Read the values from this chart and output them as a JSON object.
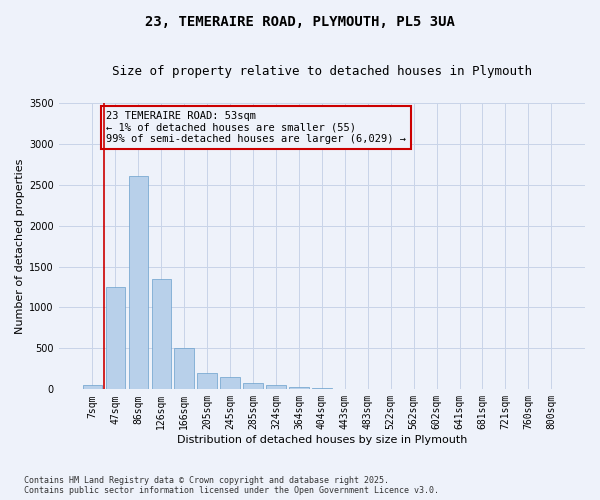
{
  "title_line1": "23, TEMERAIRE ROAD, PLYMOUTH, PL5 3UA",
  "title_line2": "Size of property relative to detached houses in Plymouth",
  "xlabel": "Distribution of detached houses by size in Plymouth",
  "ylabel": "Number of detached properties",
  "categories": [
    "7sqm",
    "47sqm",
    "86sqm",
    "126sqm",
    "166sqm",
    "205sqm",
    "245sqm",
    "285sqm",
    "324sqm",
    "364sqm",
    "404sqm",
    "443sqm",
    "483sqm",
    "522sqm",
    "562sqm",
    "602sqm",
    "641sqm",
    "681sqm",
    "721sqm",
    "760sqm",
    "800sqm"
  ],
  "values": [
    55,
    1250,
    2600,
    1350,
    500,
    200,
    150,
    75,
    50,
    25,
    15,
    8,
    5,
    3,
    2,
    1,
    1,
    0,
    0,
    0,
    0
  ],
  "bar_color": "#b8d0ea",
  "bar_edgecolor": "#6aa0cc",
  "vline_color": "#cc0000",
  "annotation_text": "23 TEMERAIRE ROAD: 53sqm\n← 1% of detached houses are smaller (55)\n99% of semi-detached houses are larger (6,029) →",
  "annotation_box_color": "#cc0000",
  "ylim": [
    0,
    3500
  ],
  "yticks": [
    0,
    500,
    1000,
    1500,
    2000,
    2500,
    3000,
    3500
  ],
  "grid_color": "#c8d4e8",
  "bg_color": "#eef2fa",
  "footnote": "Contains HM Land Registry data © Crown copyright and database right 2025.\nContains public sector information licensed under the Open Government Licence v3.0.",
  "title_fontsize": 10,
  "subtitle_fontsize": 9,
  "axis_label_fontsize": 8,
  "tick_fontsize": 7,
  "annot_fontsize": 7.5
}
